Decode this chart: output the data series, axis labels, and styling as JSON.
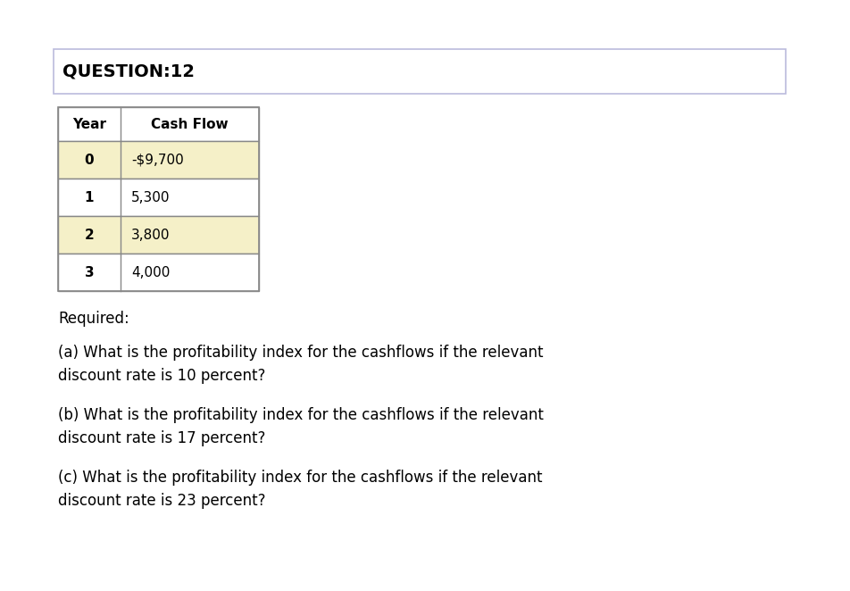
{
  "title": "QUESTION:12",
  "table_headers": [
    "Year",
    "Cash Flow"
  ],
  "table_rows": [
    [
      "0",
      "-$9,700"
    ],
    [
      "1",
      "5,300"
    ],
    [
      "2",
      "3,800"
    ],
    [
      "3",
      "4,000"
    ]
  ],
  "row_colors": [
    "#f5f0c8",
    "#ffffff",
    "#f5f0c8",
    "#ffffff"
  ],
  "header_color": "#ffffff",
  "required_text": "Required:",
  "questions": [
    "(a) What is the profitability index for the cashflows if the relevant\ndiscount rate is 10 percent?",
    "(b) What is the profitability index for the cashflows if the relevant\ndiscount rate is 17 percent?",
    "(c) What is the profitability index for the cashflows if the relevant\ndiscount rate is 23 percent?"
  ],
  "bg_color": "#ffffff",
  "border_color": "#888888",
  "title_border_color": "#bbbbdd",
  "title_box_color": "#ffffff",
  "text_color": "#000000",
  "font_size_title": 14,
  "font_size_table_header": 11,
  "font_size_table_data": 11,
  "font_size_text": 12,
  "fig_width": 9.53,
  "fig_height": 6.62,
  "dpi": 100
}
